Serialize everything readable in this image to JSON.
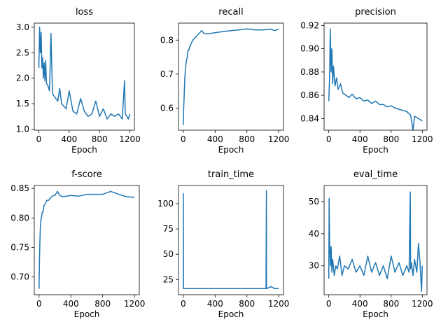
{
  "figure": {
    "background": "#ffffff",
    "series_color": "#1f77b4"
  },
  "chart_data": [
    {
      "id": "loss",
      "type": "line",
      "title": "loss",
      "xlabel": "Epoch",
      "ylabel": "",
      "xlim": [
        -60,
        1260
      ],
      "ylim": [
        0.98,
        3.08
      ],
      "xticks": [
        0,
        400,
        800,
        1200
      ],
      "yticks": [
        1.0,
        1.5,
        2.0,
        2.5,
        3.0
      ],
      "ytick_decimals": 1,
      "series": [
        {
          "x": [
            0,
            10,
            20,
            30,
            40,
            50,
            60,
            70,
            80,
            90,
            100,
            120,
            140,
            160,
            180,
            200,
            225,
            250,
            275,
            300,
            330,
            360,
            400,
            450,
            500,
            550,
            600,
            650,
            700,
            750,
            800,
            850,
            900,
            950,
            1000,
            1050,
            1100,
            1130,
            1140,
            1160,
            1180,
            1200
          ],
          "y": [
            2.2,
            3.0,
            2.5,
            2.9,
            2.2,
            2.4,
            2.0,
            2.3,
            1.95,
            2.35,
            1.9,
            1.85,
            1.75,
            2.88,
            1.7,
            1.65,
            1.6,
            1.55,
            1.8,
            1.5,
            1.45,
            1.4,
            1.75,
            1.35,
            1.3,
            1.6,
            1.35,
            1.25,
            1.3,
            1.55,
            1.25,
            1.4,
            1.2,
            1.3,
            1.25,
            1.3,
            1.2,
            1.95,
            1.3,
            1.25,
            1.2,
            1.3
          ]
        }
      ]
    },
    {
      "id": "recall",
      "type": "line",
      "title": "recall",
      "xlabel": "Epoch",
      "ylabel": "",
      "xlim": [
        -60,
        1260
      ],
      "ylim": [
        0.535,
        0.85
      ],
      "xticks": [
        0,
        400,
        800,
        1200
      ],
      "yticks": [
        0.6,
        0.7,
        0.8
      ],
      "ytick_decimals": 1,
      "series": [
        {
          "x": [
            0,
            5,
            10,
            15,
            20,
            25,
            30,
            40,
            50,
            60,
            70,
            80,
            100,
            120,
            140,
            160,
            180,
            200,
            230,
            260,
            300,
            350,
            400,
            500,
            600,
            700,
            800,
            850,
            900,
            1000,
            1100,
            1150,
            1200
          ],
          "y": [
            0.55,
            0.6,
            0.63,
            0.66,
            0.69,
            0.71,
            0.72,
            0.74,
            0.75,
            0.77,
            0.77,
            0.78,
            0.79,
            0.8,
            0.805,
            0.81,
            0.815,
            0.82,
            0.828,
            0.82,
            0.818,
            0.82,
            0.822,
            0.825,
            0.828,
            0.83,
            0.833,
            0.832,
            0.83,
            0.83,
            0.832,
            0.828,
            0.832
          ]
        }
      ]
    },
    {
      "id": "precision",
      "type": "line",
      "title": "precision",
      "xlabel": "Epoch",
      "ylabel": "",
      "xlim": [
        -60,
        1260
      ],
      "ylim": [
        0.83,
        0.922
      ],
      "xticks": [
        0,
        400,
        800,
        1200
      ],
      "yticks": [
        0.84,
        0.86,
        0.88,
        0.9,
        0.92
      ],
      "ytick_decimals": 2,
      "series": [
        {
          "x": [
            0,
            10,
            20,
            30,
            40,
            50,
            60,
            80,
            100,
            120,
            150,
            180,
            220,
            260,
            300,
            350,
            400,
            450,
            500,
            550,
            600,
            650,
            700,
            750,
            800,
            850,
            900,
            950,
            1000,
            1050,
            1080,
            1100,
            1150,
            1200
          ],
          "y": [
            0.855,
            0.875,
            0.917,
            0.88,
            0.9,
            0.87,
            0.885,
            0.868,
            0.875,
            0.865,
            0.87,
            0.862,
            0.86,
            0.858,
            0.861,
            0.857,
            0.858,
            0.855,
            0.856,
            0.853,
            0.855,
            0.852,
            0.852,
            0.85,
            0.851,
            0.849,
            0.848,
            0.847,
            0.846,
            0.843,
            0.83,
            0.842,
            0.84,
            0.838
          ]
        }
      ]
    },
    {
      "id": "f-score",
      "type": "line",
      "title": "f-score",
      "xlabel": "Epoch",
      "ylabel": "",
      "xlim": [
        -60,
        1260
      ],
      "ylim": [
        0.67,
        0.855
      ],
      "xticks": [
        0,
        400,
        800,
        1200
      ],
      "yticks": [
        0.7,
        0.75,
        0.8,
        0.85
      ],
      "ytick_decimals": 2,
      "series": [
        {
          "x": [
            0,
            5,
            10,
            15,
            20,
            25,
            30,
            40,
            50,
            60,
            80,
            100,
            120,
            150,
            180,
            200,
            230,
            260,
            300,
            400,
            500,
            600,
            700,
            800,
            900,
            1000,
            1100,
            1200
          ],
          "y": [
            0.68,
            0.73,
            0.76,
            0.78,
            0.79,
            0.8,
            0.8,
            0.81,
            0.81,
            0.82,
            0.825,
            0.83,
            0.83,
            0.835,
            0.838,
            0.838,
            0.845,
            0.838,
            0.836,
            0.838,
            0.837,
            0.84,
            0.84,
            0.84,
            0.845,
            0.84,
            0.836,
            0.835
          ]
        }
      ]
    },
    {
      "id": "train_time",
      "type": "line",
      "title": "train_time",
      "xlabel": "Epoch",
      "ylabel": "",
      "xlim": [
        -60,
        1260
      ],
      "ylim": [
        10,
        118
      ],
      "xticks": [
        0,
        400,
        800,
        1200
      ],
      "yticks": [
        25,
        50,
        75,
        100
      ],
      "ytick_decimals": 0,
      "series": [
        {
          "x": [
            0,
            1,
            2,
            10,
            100,
            200,
            400,
            600,
            800,
            1000,
            1040,
            1045,
            1046,
            1050,
            1100,
            1150,
            1200
          ],
          "y": [
            16,
            110,
            16,
            16,
            16,
            16,
            16,
            16,
            16,
            16,
            16,
            113,
            16,
            16,
            18,
            16,
            16
          ]
        }
      ]
    },
    {
      "id": "eval_time",
      "type": "line",
      "title": "eval_time",
      "xlabel": "Epoch",
      "ylabel": "",
      "xlim": [
        -60,
        1260
      ],
      "ylim": [
        21,
        55
      ],
      "xticks": [
        0,
        400,
        800,
        1200
      ],
      "yticks": [
        30,
        40,
        50
      ],
      "ytick_decimals": 0,
      "series": [
        {
          "x": [
            0,
            5,
            10,
            15,
            20,
            30,
            40,
            50,
            70,
            90,
            110,
            140,
            170,
            200,
            250,
            300,
            350,
            400,
            450,
            500,
            550,
            600,
            650,
            700,
            750,
            800,
            850,
            900,
            950,
            1000,
            1030,
            1045,
            1050,
            1060,
            1080,
            1100,
            1130,
            1150,
            1170,
            1190,
            1200
          ],
          "y": [
            26,
            51,
            38,
            34,
            30,
            36,
            28,
            32,
            27,
            30,
            29,
            33,
            27,
            30,
            29,
            32,
            28,
            30,
            27,
            33,
            28,
            31,
            27,
            30,
            26,
            33,
            28,
            31,
            27,
            30,
            28,
            53,
            29,
            31,
            27,
            32,
            28,
            37,
            31,
            22,
            30
          ]
        }
      ]
    }
  ]
}
